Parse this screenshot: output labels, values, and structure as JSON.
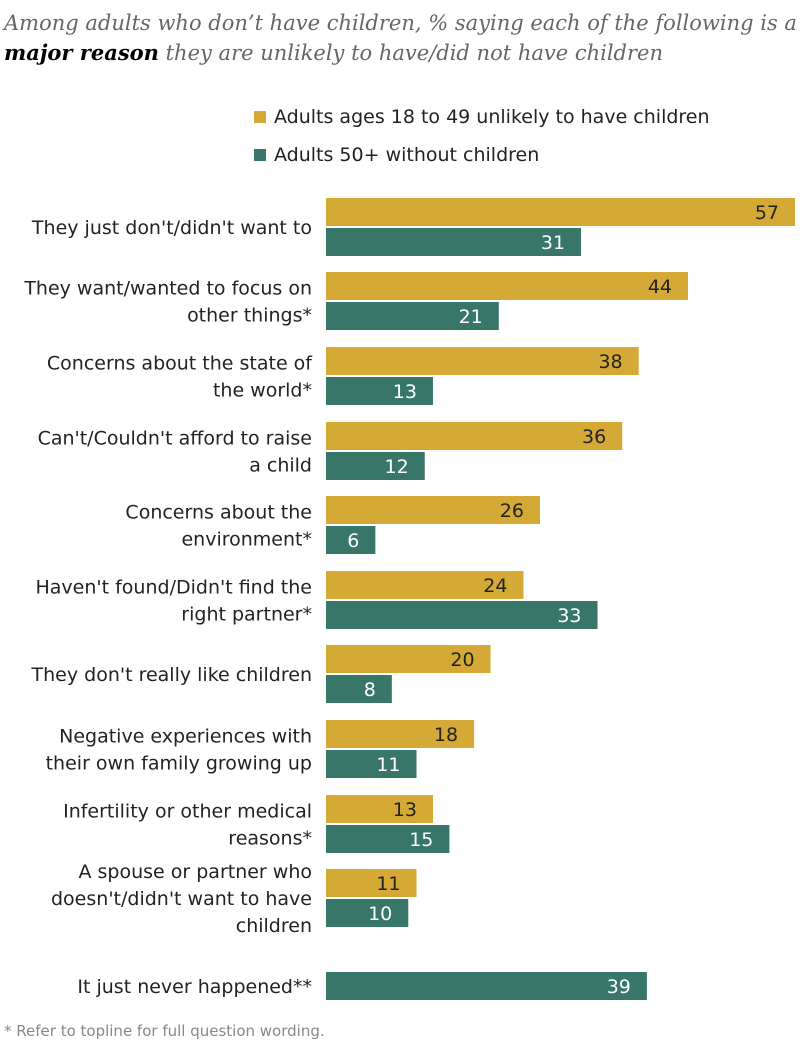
{
  "title": {
    "line1": "Among adults who don’t have children, % saying each of the following is a",
    "bold": "major reason",
    "line2_rest": " they are unlikely to have/did not have children"
  },
  "footnote": "* Refer to topline for full question wording.",
  "chart_data": {
    "type": "bar",
    "orientation": "horizontal",
    "legend_placement": "top",
    "grid": false,
    "xlim": [
      0,
      57
    ],
    "colors": {
      "series_1": "#D4A935",
      "series_2": "#38766A"
    },
    "categories": [
      [
        "They just don't/didn't want to"
      ],
      [
        "They want/wanted to focus on",
        "other things*"
      ],
      [
        "Concerns about the state of",
        "the world*"
      ],
      [
        "Can't/Couldn't afford to raise",
        "a child"
      ],
      [
        "Concerns about the",
        "environment*"
      ],
      [
        "Haven't found/Didn't find the",
        "right partner*"
      ],
      [
        "They don't really like children"
      ],
      [
        "Negative experiences with",
        "their own family growing up"
      ],
      [
        "Infertility or other medical",
        "reasons*"
      ],
      [
        "A spouse or partner who",
        "doesn't/didn't want to have",
        "children"
      ],
      [
        "It just never happened**"
      ]
    ],
    "series": [
      {
        "name": "Adults ages 18 to 49 unlikely to have children",
        "values": [
          57,
          44,
          38,
          36,
          26,
          24,
          20,
          18,
          13,
          11,
          null
        ]
      },
      {
        "name": "Adults 50+ without children",
        "values": [
          31,
          21,
          13,
          12,
          6,
          33,
          8,
          11,
          15,
          10,
          39
        ]
      }
    ]
  }
}
